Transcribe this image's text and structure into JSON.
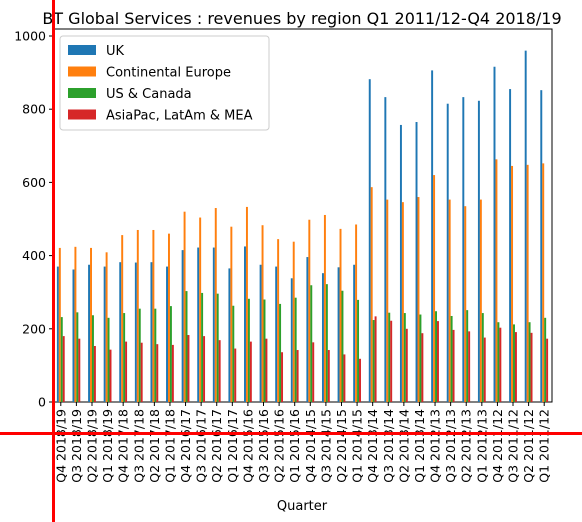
{
  "chart_data": {
    "type": "bar",
    "title": "BT Global Services : revenues by region Q1 2011/12-Q4 2018/19",
    "xlabel": "Quarter",
    "ylabel": "",
    "ylim": [
      0,
      1000
    ],
    "yticks": [
      0,
      200,
      400,
      600,
      800,
      1000
    ],
    "legend_position": "top-left",
    "grid": false,
    "categories": [
      "Q4 2018/19",
      "Q3 2018/19",
      "Q2 2018/19",
      "Q1 2018/19",
      "Q4 2017/18",
      "Q3 2017/18",
      "Q2 2017/18",
      "Q1 2017/18",
      "Q4 2016/17",
      "Q3 2016/17",
      "Q2 2016/17",
      "Q1 2016/17",
      "Q4 2015/16",
      "Q3 2015/16",
      "Q2 2015/16",
      "Q1 2015/16",
      "Q4 2014/15",
      "Q3 2014/15",
      "Q2 2014/15",
      "Q1 2014/15",
      "Q4 2013/14",
      "Q3 2013/14",
      "Q2 2013/14",
      "Q1 2013/14",
      "Q4 2012/13",
      "Q3 2012/13",
      "Q2 2012/13",
      "Q1 2012/13",
      "Q4 2011/12",
      "Q3 2011/12",
      "Q2 2011/12",
      "Q1 2011/12"
    ],
    "series": [
      {
        "name": "UK",
        "color": "#1f77b4",
        "values": [
          370,
          362,
          375,
          370,
          382,
          381,
          382,
          370,
          415,
          422,
          422,
          365,
          425,
          375,
          370,
          338,
          396,
          352,
          368,
          375,
          882,
          833,
          757,
          765,
          906,
          815,
          833,
          823,
          916,
          855,
          960,
          852
        ]
      },
      {
        "name": "Continental Europe",
        "color": "#ff7f0e",
        "values": [
          421,
          424,
          421,
          409,
          456,
          470,
          470,
          460,
          520,
          504,
          530,
          479,
          533,
          483,
          445,
          438,
          498,
          511,
          473,
          485,
          587,
          553,
          546,
          560,
          620,
          553,
          535,
          553,
          663,
          645,
          648,
          652
        ]
      },
      {
        "name": "US & Canada",
        "color": "#2ca02c",
        "values": [
          232,
          245,
          237,
          230,
          243,
          255,
          255,
          262,
          303,
          298,
          296,
          263,
          282,
          280,
          268,
          285,
          319,
          322,
          304,
          279,
          224,
          244,
          243,
          239,
          248,
          235,
          251,
          243,
          218,
          212,
          218,
          230
        ]
      },
      {
        "name": "AsiaPac, LatAm & MEA",
        "color": "#d62728",
        "values": [
          180,
          173,
          153,
          143,
          165,
          162,
          158,
          156,
          183,
          180,
          169,
          146,
          165,
          173,
          136,
          142,
          163,
          142,
          130,
          118,
          234,
          222,
          200,
          188,
          221,
          197,
          193,
          176,
          203,
          191,
          189,
          173
        ]
      }
    ]
  }
}
